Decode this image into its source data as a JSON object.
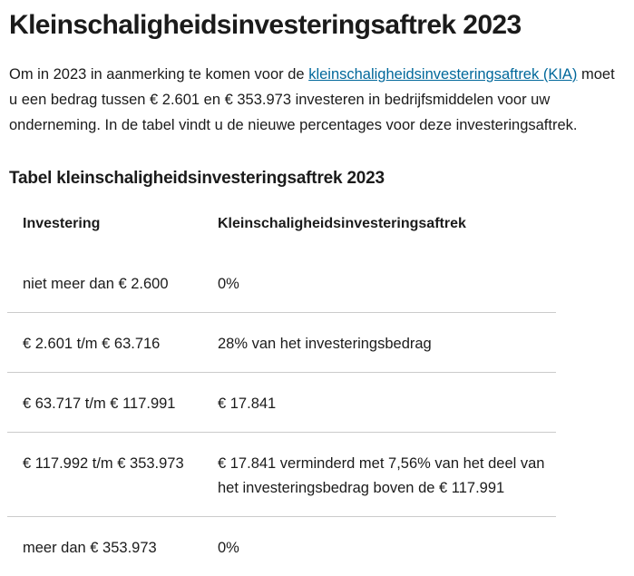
{
  "page": {
    "title": "Kleinschaligheidsinvesteringsaftrek 2023",
    "intro": {
      "before_link": "Om in 2023 in aanmerking te komen voor de ",
      "link_text": "kleinschaligheidsinvesteringsaftrek (KIA)",
      "after_link": " moet u een bedrag tussen € 2.601 en € 353.973 investeren in bedrijfsmiddelen voor uw onderneming. In de tabel vindt u de nieuwe percentages voor deze investeringsaftrek."
    },
    "table_title": "Tabel kleinschaligheidsinvesteringsaftrek 2023",
    "table": {
      "headers": {
        "investering": "Investering",
        "aftrek": "Kleinschaligheidsinvesteringsaftrek"
      },
      "rows": [
        {
          "investering": "niet meer dan € 2.600",
          "aftrek": "0%"
        },
        {
          "investering": "€ 2.601 t/m € 63.716",
          "aftrek": "28% van het investeringsbedrag"
        },
        {
          "investering": "€ 63.717 t/m € 117.991",
          "aftrek": "€ 17.841"
        },
        {
          "investering": "€ 117.992 t/m € 353.973",
          "aftrek": "€ 17.841 verminderd met 7,56% van het deel van het investeringsbedrag boven de € 117.991"
        },
        {
          "investering": "meer dan € 353.973",
          "aftrek": "0%"
        }
      ]
    },
    "colors": {
      "text": "#1b1b1b",
      "link": "#01689b",
      "divider": "#cbcbcb",
      "background": "#ffffff"
    }
  }
}
